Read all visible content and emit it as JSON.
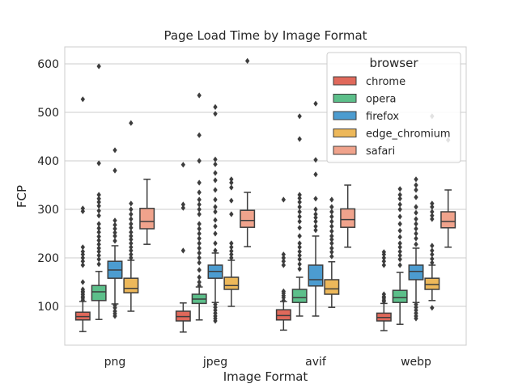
{
  "chart_data": {
    "type": "boxplot",
    "title": "Page Load Time by Image Format",
    "xlabel": "Image Format",
    "ylabel": "FCP",
    "ylim": [
      20,
      635
    ],
    "yticks": [
      100,
      200,
      300,
      400,
      500,
      600
    ],
    "grid": "horizontal",
    "legend_position": "top-right",
    "legend_title": "browser",
    "categories": [
      "png",
      "jpeg",
      "avif",
      "webp"
    ],
    "series": [
      {
        "name": "chrome",
        "color": "#e0695b",
        "boxes": [
          {
            "whislo": 48,
            "q1": 72,
            "med": 79,
            "q3": 88,
            "whishi": 110,
            "fliers": [
              113,
              117,
              120,
              124,
              128,
              131,
              135,
              150,
              185,
              193,
              200,
              207,
              213,
              222,
              296,
              302,
              527
            ]
          },
          {
            "whislo": 47,
            "q1": 70,
            "med": 79,
            "q3": 90,
            "whishi": 107,
            "fliers": [
              215,
              303,
              310,
              392
            ]
          },
          {
            "whislo": 51,
            "q1": 72,
            "med": 81,
            "q3": 93,
            "whishi": 110,
            "fliers": [
              112,
              118,
              122,
              127,
              131,
              185,
              193,
              200,
              207,
              320
            ]
          },
          {
            "whislo": 50,
            "q1": 70,
            "med": 77,
            "q3": 86,
            "whishi": 106,
            "fliers": [
              110,
              113,
              117,
              120,
              125,
              185,
              193,
              200,
              207,
              212
            ]
          }
        ]
      },
      {
        "name": "opera",
        "color": "#5cbf8a",
        "boxes": [
          {
            "whislo": 73,
            "q1": 112,
            "med": 130,
            "q3": 143,
            "whishi": 172,
            "fliers": [
              187,
              197,
              205,
              213,
              220,
              228,
              236,
              244,
              253,
              261,
              270,
              287,
              297,
              307,
              315,
              322,
              330,
              395,
              595
            ]
          },
          {
            "whislo": 72,
            "q1": 106,
            "med": 115,
            "q3": 125,
            "whishi": 140,
            "fliers": [
              143,
              150,
              160,
              175,
              190,
              200,
              210,
              220,
              230,
              240,
              250,
              260,
              270,
              290,
              300,
              310,
              320,
              335,
              355,
              400,
              453,
              535
            ]
          },
          {
            "whislo": 80,
            "q1": 108,
            "med": 118,
            "q3": 135,
            "whishi": 160,
            "fliers": [
              177,
              187,
              197,
              205,
              213,
              222,
              230,
              245,
              262,
              275,
              285,
              295,
              305,
              315,
              323,
              330,
              445,
              492
            ]
          },
          {
            "whislo": 63,
            "q1": 108,
            "med": 118,
            "q3": 133,
            "whishi": 170,
            "fliers": [
              185,
              197,
              205,
              213,
              222,
              230,
              243,
              256,
              270,
              285,
              300,
              310,
              322,
              330,
              342
            ]
          }
        ]
      },
      {
        "name": "firefox",
        "color": "#4c9cd0",
        "boxes": [
          {
            "whislo": 105,
            "q1": 158,
            "med": 175,
            "q3": 193,
            "whishi": 225,
            "fliers": [
              80,
              85,
              90,
              97,
              102,
              235,
              245,
              252,
              260,
              268,
              277,
              380,
              422
            ]
          },
          {
            "whislo": 108,
            "q1": 158,
            "med": 172,
            "q3": 185,
            "whishi": 210,
            "fliers": [
              70,
              75,
              80,
              86,
              92,
              98,
              104,
              215,
              230,
              250,
              265,
              278,
              295,
              305,
              320,
              340,
              360,
              375,
              393,
              403,
              497,
              511
            ]
          },
          {
            "whislo": 80,
            "q1": 142,
            "med": 155,
            "q3": 185,
            "whishi": 245,
            "fliers": [
              257,
              265,
              275,
              283,
              290,
              300,
              322,
              372,
              402,
              518
            ]
          },
          {
            "whislo": 108,
            "q1": 155,
            "med": 172,
            "q3": 185,
            "whishi": 220,
            "fliers": [
              75,
              80,
              86,
              92,
              98,
              104,
              228,
              240,
              250,
              260,
              270,
              280,
              293,
              305,
              325,
              340,
              350,
              362
            ]
          }
        ]
      },
      {
        "name": "edge_chromium",
        "color": "#edb85a",
        "boxes": [
          {
            "whislo": 90,
            "q1": 128,
            "med": 137,
            "q3": 158,
            "whishi": 195,
            "fliers": [
              200,
              207,
              215,
              222,
              230,
              238,
              245,
              253,
              262,
              270,
              280,
              290,
              300,
              312,
              478
            ]
          },
          {
            "whislo": 100,
            "q1": 135,
            "med": 143,
            "q3": 160,
            "whishi": 195,
            "fliers": [
              200,
              207,
              214,
              222,
              230,
              290,
              318,
              345,
              355,
              362
            ]
          },
          {
            "whislo": 98,
            "q1": 125,
            "med": 136,
            "q3": 155,
            "whishi": 192,
            "fliers": [
              203,
              212,
              220,
              230,
              238,
              245,
              255,
              265,
              275,
              285,
              295,
              305,
              320
            ]
          },
          {
            "whislo": 112,
            "q1": 135,
            "med": 145,
            "q3": 158,
            "whishi": 185,
            "fliers": [
              97,
              190,
              198,
              207,
              215,
              225,
              280,
              287,
              295,
              305,
              312,
              492
            ]
          }
        ]
      },
      {
        "name": "safari",
        "color": "#f0a38c",
        "boxes": [
          {
            "whislo": 228,
            "q1": 260,
            "med": 275,
            "q3": 302,
            "whishi": 362,
            "fliers": []
          },
          {
            "whislo": 223,
            "q1": 263,
            "med": 277,
            "q3": 298,
            "whishi": 335,
            "fliers": [
              606
            ]
          },
          {
            "whislo": 222,
            "q1": 263,
            "med": 279,
            "q3": 301,
            "whishi": 350,
            "fliers": []
          },
          {
            "whislo": 222,
            "q1": 262,
            "med": 275,
            "q3": 295,
            "whishi": 340,
            "fliers": [
              443
            ]
          }
        ]
      }
    ]
  }
}
